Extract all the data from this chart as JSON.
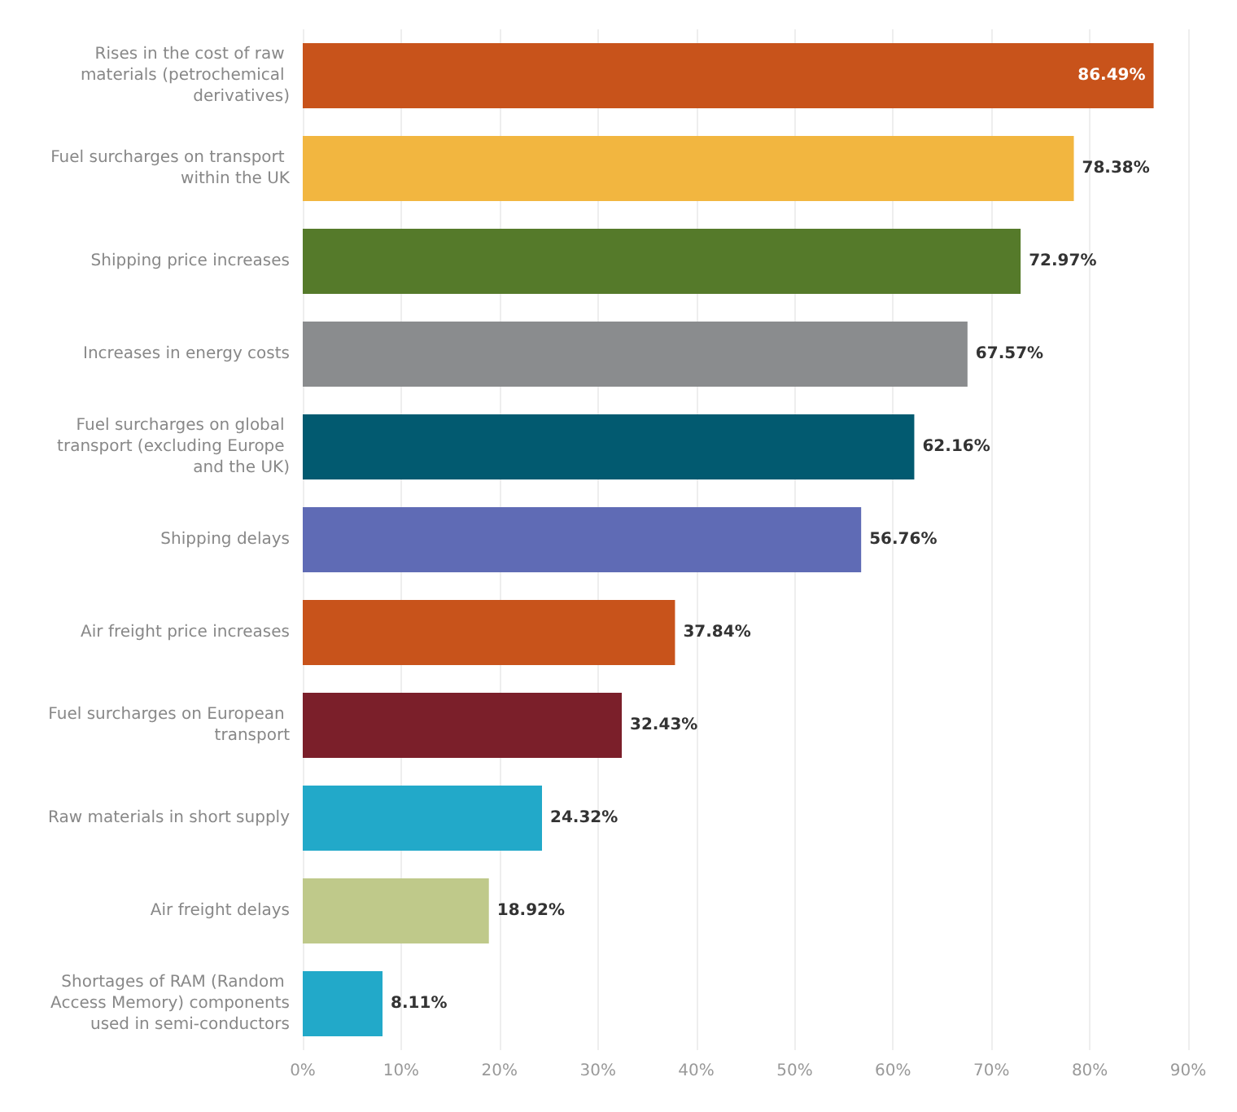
{
  "chart_data": {
    "type": "bar",
    "orientation": "horizontal",
    "categories": [
      "Rises in the cost of raw materials (petrochemical derivatives)",
      "Fuel surcharges on transport within the UK",
      "Shipping price increases",
      "Increases in energy costs",
      "Fuel surcharges on global transport (excluding Europe and the UK)",
      "Shipping delays",
      "Air freight price increases",
      "Fuel surcharges on European transport",
      "Raw materials in short supply",
      "Air freight delays",
      "Shortages of RAM (Random Access Memory) components used in semi-conductors"
    ],
    "values": [
      86.49,
      78.38,
      72.97,
      67.57,
      62.16,
      56.76,
      37.84,
      32.43,
      24.32,
      18.92,
      8.11
    ],
    "colors": [
      "#c8531b",
      "#f2b640",
      "#557a2a",
      "#8a8c8e",
      "#025a70",
      "#5f6bb5",
      "#c8531b",
      "#7b1f2a",
      "#22a9c9",
      "#bfc98a",
      "#22a9c9"
    ],
    "value_labels": [
      "86.49%",
      "78.38%",
      "72.97%",
      "67.57%",
      "62.16%",
      "56.76%",
      "37.84%",
      "32.43%",
      "24.32%",
      "18.92%",
      "8.11%"
    ],
    "xlim": [
      0,
      90
    ],
    "xticks": [
      {
        "value": 0,
        "label": "0%"
      },
      {
        "value": 10,
        "label": "10%"
      },
      {
        "value": 20,
        "label": "20%"
      },
      {
        "value": 30,
        "label": "30%"
      },
      {
        "value": 40,
        "label": "40%"
      },
      {
        "value": 50,
        "label": "50%"
      },
      {
        "value": 60,
        "label": "60%"
      },
      {
        "value": 70,
        "label": "70%"
      },
      {
        "value": 80,
        "label": "80%"
      },
      {
        "value": 90,
        "label": "90%"
      }
    ],
    "grid": "x"
  }
}
